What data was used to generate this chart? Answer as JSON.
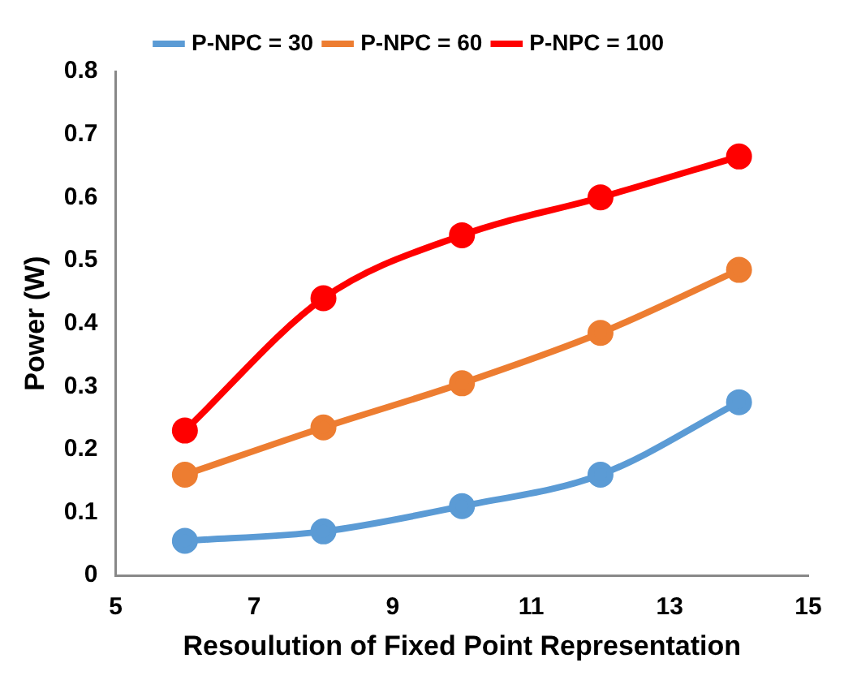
{
  "chart_data": {
    "type": "line",
    "xlabel": "Resoulution of Fixed Point Representation",
    "ylabel": "Power (W)",
    "x": [
      6,
      8,
      10,
      12,
      14
    ],
    "series": [
      {
        "name": "P-NPC = 30",
        "color": "#5b9bd5",
        "values": [
          0.055,
          0.07,
          0.11,
          0.16,
          0.275
        ]
      },
      {
        "name": "P-NPC = 60",
        "color": "#ed7d31",
        "values": [
          0.16,
          0.235,
          0.305,
          0.385,
          0.485
        ]
      },
      {
        "name": "P-NPC = 100",
        "color": "#ff0000",
        "values": [
          0.23,
          0.44,
          0.54,
          0.6,
          0.665
        ]
      }
    ],
    "xlim": [
      5,
      15
    ],
    "xticks": [
      5,
      7,
      9,
      11,
      13,
      15
    ],
    "ylim": [
      0,
      0.8
    ],
    "yticks": [
      0,
      0.1,
      0.2,
      0.3,
      0.4,
      0.5,
      0.6,
      0.7,
      0.8
    ],
    "grid": false,
    "legend": "top",
    "marker": "circle",
    "line_style": "solid"
  }
}
